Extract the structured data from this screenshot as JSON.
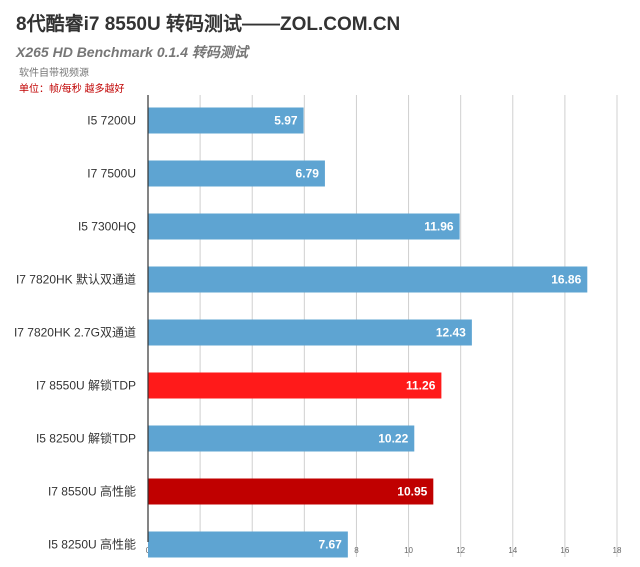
{
  "chart_data": {
    "type": "bar",
    "orientation": "horizontal",
    "title": "8代酷睿i7 8550U 转码测试——ZOL.COM.CN",
    "subtitle": "X265 HD Benchmark 0.1.4 转码测试",
    "note": "软件自带视频源",
    "unit": "单位：帧/每秒 越多越好",
    "categories": [
      "I5 7200U",
      "I7 7500U",
      "I5 7300HQ",
      "I7 7820HK 默认双通道",
      "I7 7820HK 2.7G双通道",
      "I7 8550U 解锁TDP",
      "I5 8250U 解锁TDP",
      "I7 8550U 高性能",
      "I5 8250U 高性能"
    ],
    "values": [
      5.97,
      6.79,
      11.96,
      16.86,
      12.43,
      11.26,
      10.22,
      10.95,
      7.67
    ],
    "value_labels": [
      "5.97",
      "6.79",
      "11.96",
      "16.86",
      "12.43",
      "11.26",
      "10.22",
      "10.95",
      "7.67"
    ],
    "colors": [
      "#5ea4d2",
      "#5ea4d2",
      "#5ea4d2",
      "#5ea4d2",
      "#5ea4d2",
      "#ff1a1a",
      "#5ea4d2",
      "#c00000",
      "#5ea4d2"
    ],
    "xlim": [
      0,
      18
    ],
    "xticks": [
      "0",
      "2",
      "4",
      "6",
      "8",
      "10",
      "12",
      "14",
      "16",
      "18"
    ],
    "grid": true,
    "legend": "none"
  }
}
